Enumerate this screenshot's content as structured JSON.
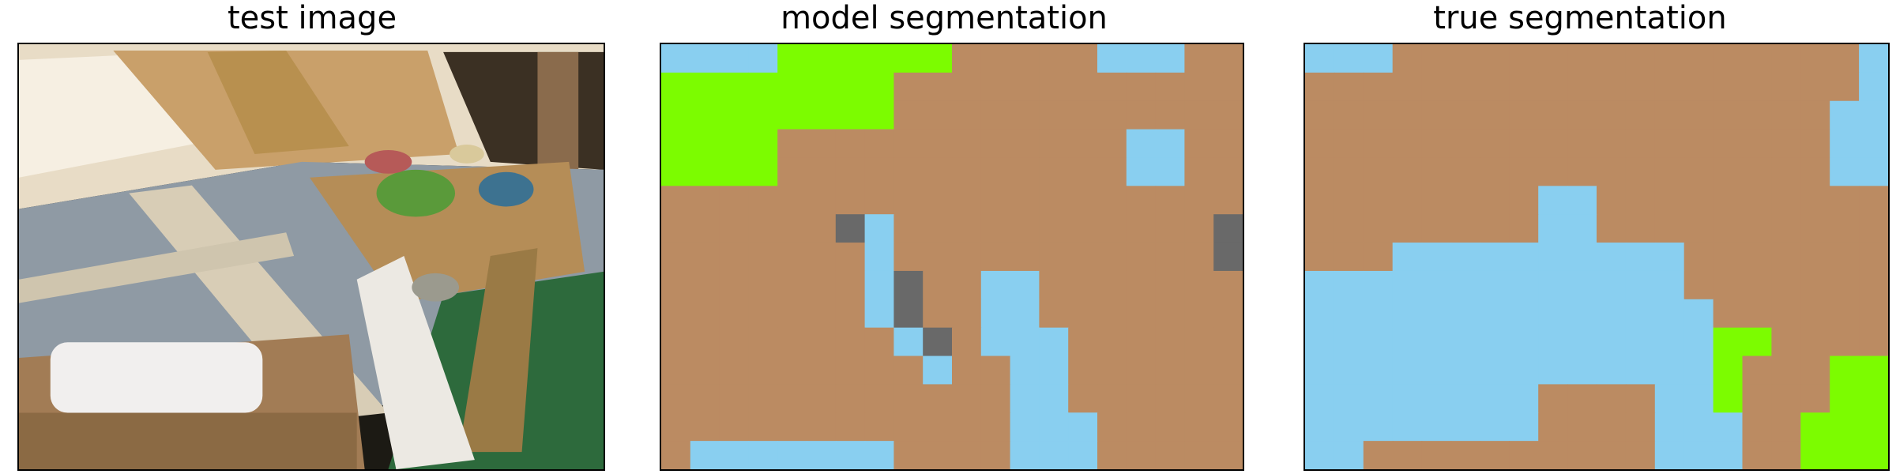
{
  "panels": [
    {
      "title": "test image"
    },
    {
      "title": "model segmentation"
    },
    {
      "title": "true segmentation"
    }
  ],
  "colors": {
    "background": "#ffffff",
    "sky_blue": "#89CFF0",
    "brown": "#BB8B62",
    "green": "#7CFC00",
    "gray": "#696969"
  },
  "segmentation_legend_colors": [
    "#89CFF0",
    "#BB8B62",
    "#7CFC00",
    "#696969"
  ],
  "grid": {
    "cols": 20,
    "rows": 15
  },
  "model_segmentation": {
    "rows": [
      "BBBBGGGGGGNNNNNBBBNN",
      "GGGGGGGGNNNNNNNNNNNN",
      "GGGGGGGGNNNNNNNNNNNN",
      "GGGGNNNNNNNNNNNNBBNN",
      "GGGGNNNNNNNNNNNNBBNN",
      "NNNNNNNNNNNNNNNNNNNN",
      "NNNNNNYBNNNNNNNNNNNY",
      "NNNNNNNBNNNNNNNNNNNY",
      "NNNNNNNBYNNBBNNNNNNN",
      "NNNNNNNBYNNBBNNNNNNN",
      "NNNNNNNNBYNBBBNNNNNN",
      "NNNNNNNNNBNNBBNNNNNN",
      "NNNNNNNNNNNNBBNNNNNN",
      "NNNNNNNNNNNNBBBNNNNN",
      "NBBBBBBBNNNNBBBNNNNN"
    ]
  },
  "true_segmentation": {
    "rows": [
      "BBBNNNNNNNNNNNNNNNNB",
      "NNNNNNNNNNNNNNNNNNNB",
      "NNNNNNNNNNNNNNNNNNBB",
      "NNNNNNNNNNNNNNNNNNBB",
      "NNNNNNNNNNNNNNNNNNBB",
      "NNNNNNNNBBNNNNNNNNNN",
      "NNNNNNNNBBNNNNNNNNNN",
      "NNNBBBBBBBBBBNNNNNNN",
      "BBBBBBBBBBBBBNNNNNNN",
      "BBBBBBBBBBBBBBNNNNNN",
      "BBBBBBBBBBBBBBGGNNNN",
      "BBBBBBBBBBBBBBGNNNGG",
      "BBBBBBBBNNNNBBGNNNGG",
      "BBBBBBBBNNNNBBBNNGGG",
      "BBNNNNNNNNNNBBBNNGGG"
    ]
  }
}
